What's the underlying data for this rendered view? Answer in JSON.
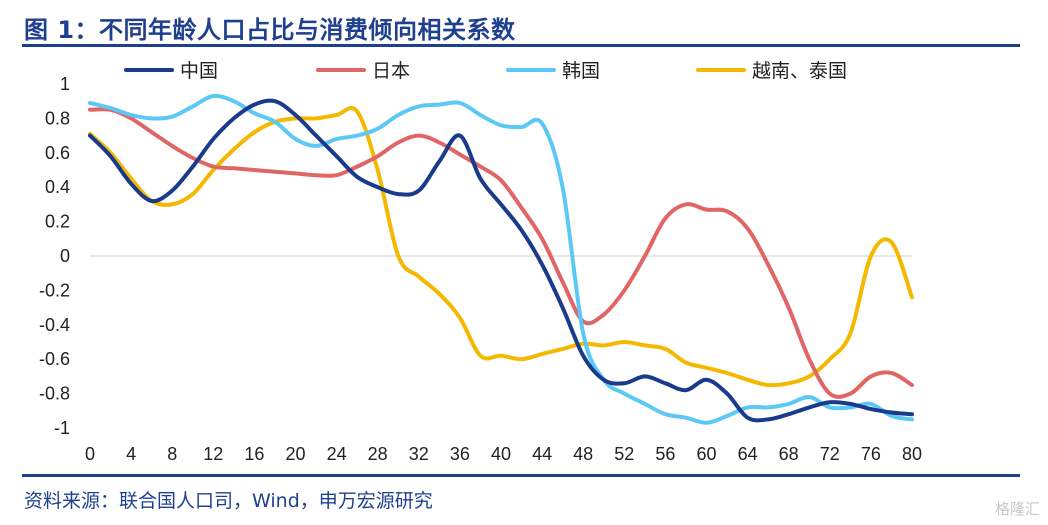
{
  "title": "图 1：不同年龄人口占比与消费倾向相关系数",
  "source": "资料来源：联合国人口司，Wind，申万宏源研究",
  "watermark": "格隆汇",
  "chart_data": {
    "type": "line",
    "title": "",
    "xlabel": "",
    "ylabel": "",
    "xlim": [
      0,
      80
    ],
    "ylim": [
      -1,
      1
    ],
    "x_ticks": [
      0,
      4,
      8,
      12,
      16,
      20,
      24,
      28,
      32,
      36,
      40,
      44,
      48,
      52,
      56,
      60,
      64,
      68,
      72,
      76,
      80
    ],
    "y_ticks": [
      1,
      0.8,
      0.6,
      0.4,
      0.2,
      0,
      -0.2,
      -0.4,
      -0.6,
      -0.8,
      -1
    ],
    "y_tick_labels": [
      "1",
      "0.8",
      "0.6",
      "0.4",
      "0.2",
      "0",
      "-0.2",
      "-0.4",
      "-0.6",
      "-0.8",
      "-1"
    ],
    "x_tick_labels": [
      "0",
      "4",
      "8",
      "12",
      "16",
      "20",
      "24",
      "28",
      "32",
      "36",
      "40",
      "44",
      "48",
      "52",
      "56",
      "60",
      "64",
      "68",
      "72",
      "76",
      "80"
    ],
    "grid": false,
    "legend_position": "top",
    "x": [
      0,
      2,
      4,
      6,
      8,
      10,
      12,
      14,
      16,
      18,
      20,
      22,
      24,
      26,
      28,
      30,
      32,
      34,
      36,
      38,
      40,
      42,
      44,
      46,
      48,
      50,
      52,
      54,
      56,
      58,
      60,
      62,
      64,
      66,
      68,
      70,
      72,
      74,
      76,
      78,
      80
    ],
    "series": [
      {
        "name": "中国",
        "color": "#1a3a8c",
        "values": [
          0.7,
          0.58,
          0.42,
          0.32,
          0.38,
          0.52,
          0.68,
          0.8,
          0.88,
          0.9,
          0.82,
          0.7,
          0.58,
          0.46,
          0.4,
          0.36,
          0.38,
          0.55,
          0.7,
          0.45,
          0.3,
          0.15,
          -0.05,
          -0.3,
          -0.58,
          -0.72,
          -0.74,
          -0.7,
          -0.74,
          -0.78,
          -0.72,
          -0.8,
          -0.94,
          -0.95,
          -0.92,
          -0.88,
          -0.85,
          -0.86,
          -0.89,
          -0.91,
          -0.92
        ]
      },
      {
        "name": "日本",
        "color": "#e06666",
        "values": [
          0.85,
          0.85,
          0.8,
          0.72,
          0.64,
          0.57,
          0.52,
          0.51,
          0.5,
          0.49,
          0.48,
          0.47,
          0.47,
          0.52,
          0.58,
          0.66,
          0.7,
          0.66,
          0.59,
          0.52,
          0.44,
          0.28,
          0.1,
          -0.15,
          -0.38,
          -0.34,
          -0.2,
          0.0,
          0.22,
          0.3,
          0.27,
          0.26,
          0.16,
          -0.05,
          -0.3,
          -0.6,
          -0.8,
          -0.8,
          -0.7,
          -0.68,
          -0.75
        ]
      },
      {
        "name": "韩国",
        "color": "#5bc8f5",
        "values": [
          0.89,
          0.86,
          0.82,
          0.8,
          0.81,
          0.87,
          0.93,
          0.9,
          0.83,
          0.78,
          0.68,
          0.64,
          0.68,
          0.7,
          0.74,
          0.82,
          0.87,
          0.88,
          0.89,
          0.82,
          0.76,
          0.75,
          0.77,
          0.4,
          -0.45,
          -0.72,
          -0.8,
          -0.86,
          -0.92,
          -0.94,
          -0.97,
          -0.93,
          -0.88,
          -0.88,
          -0.86,
          -0.82,
          -0.88,
          -0.88,
          -0.86,
          -0.93,
          -0.95
        ]
      },
      {
        "name": "越南、泰国",
        "color": "#f5b800",
        "values": [
          0.71,
          0.6,
          0.45,
          0.32,
          0.3,
          0.36,
          0.5,
          0.62,
          0.72,
          0.78,
          0.8,
          0.8,
          0.82,
          0.84,
          0.5,
          0.0,
          -0.12,
          -0.22,
          -0.36,
          -0.58,
          -0.58,
          -0.6,
          -0.57,
          -0.54,
          -0.51,
          -0.52,
          -0.5,
          -0.52,
          -0.54,
          -0.62,
          -0.65,
          -0.68,
          -0.72,
          -0.75,
          -0.74,
          -0.7,
          -0.6,
          -0.45,
          0.0,
          0.08,
          -0.24
        ]
      }
    ]
  }
}
